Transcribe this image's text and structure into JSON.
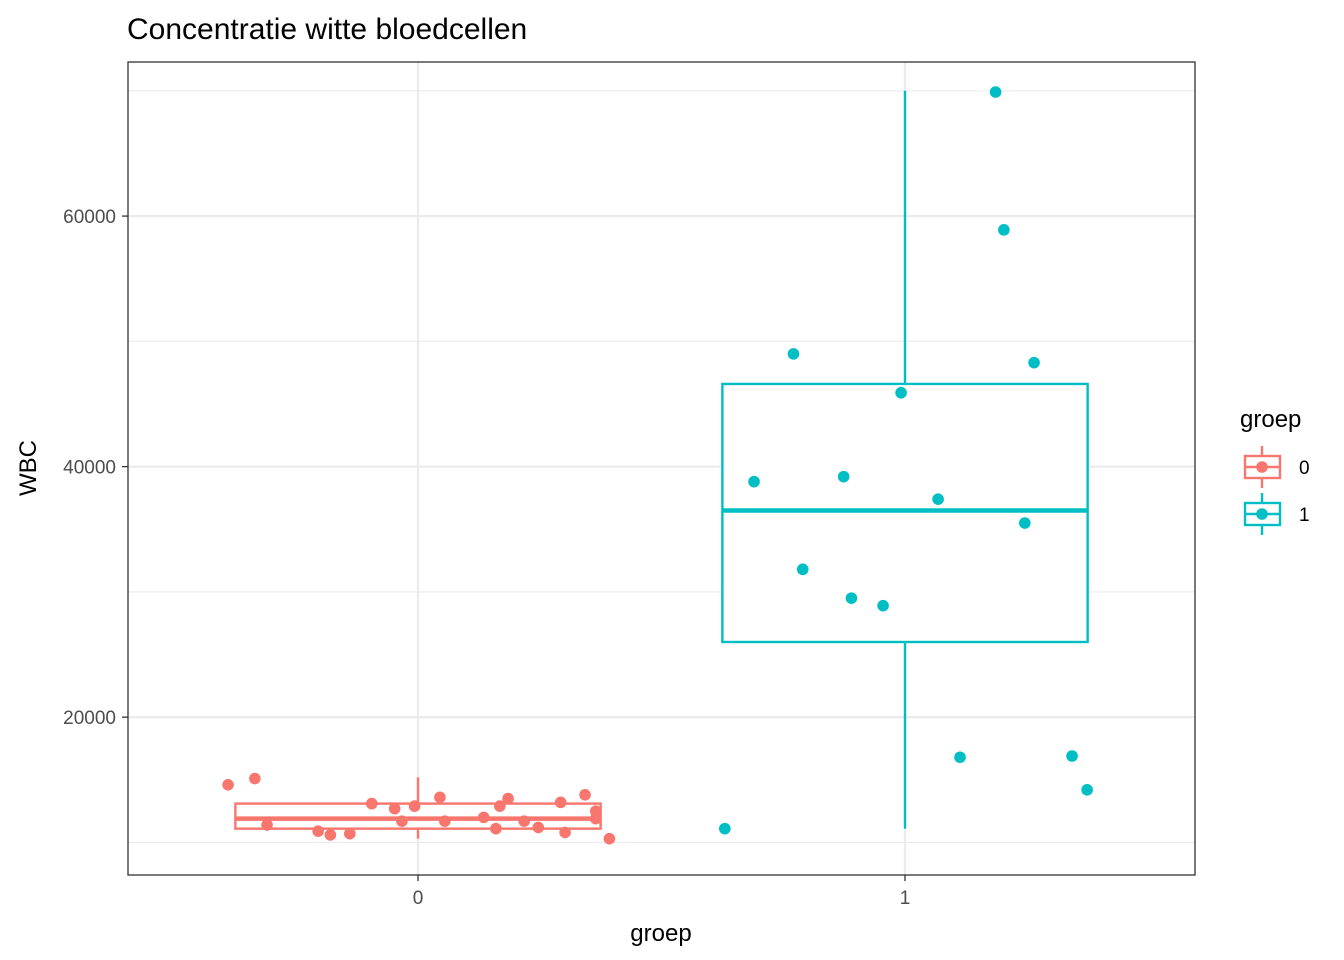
{
  "chart_data": {
    "type": "boxplot",
    "title": "Concentratie witte bloedcellen",
    "xlabel": "groep",
    "ylabel": "WBC",
    "categories": [
      "0",
      "1"
    ],
    "ylim": [
      7400,
      72300
    ],
    "yticks": [
      20000,
      40000,
      60000
    ],
    "ytick_labels": [
      "20000",
      "40000",
      "60000"
    ],
    "grid": true,
    "legend": {
      "title": "groep",
      "position": "right",
      "entries": [
        {
          "label": "0",
          "color": "#F8766D"
        },
        {
          "label": "1",
          "color": "#00BFC4"
        }
      ]
    },
    "boxes": [
      {
        "category": "0",
        "color": "#F8766D",
        "whisker_low": 10300,
        "q1": 11100,
        "median": 11900,
        "q3": 13100,
        "whisker_high": 15200
      },
      {
        "category": "1",
        "color": "#00BFC4",
        "whisker_low": 11100,
        "q1": 26000,
        "median": 36500,
        "q3": 46600,
        "whisker_high": 70000
      }
    ],
    "series": [
      {
        "name": "0",
        "color": "#F8766D",
        "points": [
          {
            "jitter": -0.39,
            "y": 14600
          },
          {
            "jitter": -0.335,
            "y": 15100
          },
          {
            "jitter": -0.31,
            "y": 11400
          },
          {
            "jitter": -0.205,
            "y": 10900
          },
          {
            "jitter": -0.18,
            "y": 10600
          },
          {
            "jitter": -0.14,
            "y": 10700
          },
          {
            "jitter": -0.095,
            "y": 13100
          },
          {
            "jitter": -0.048,
            "y": 12700
          },
          {
            "jitter": -0.033,
            "y": 11700
          },
          {
            "jitter": -0.007,
            "y": 12900
          },
          {
            "jitter": 0.045,
            "y": 13600
          },
          {
            "jitter": 0.055,
            "y": 11700
          },
          {
            "jitter": 0.135,
            "y": 12000
          },
          {
            "jitter": 0.16,
            "y": 11100
          },
          {
            "jitter": 0.168,
            "y": 12900
          },
          {
            "jitter": 0.185,
            "y": 13500
          },
          {
            "jitter": 0.218,
            "y": 11700
          },
          {
            "jitter": 0.247,
            "y": 11200
          },
          {
            "jitter": 0.293,
            "y": 13200
          },
          {
            "jitter": 0.302,
            "y": 10800
          },
          {
            "jitter": 0.343,
            "y": 13800
          },
          {
            "jitter": 0.365,
            "y": 12500
          },
          {
            "jitter": 0.365,
            "y": 11900
          },
          {
            "jitter": 0.393,
            "y": 10300
          }
        ]
      },
      {
        "name": "1",
        "color": "#00BFC4",
        "points": [
          {
            "jitter": -0.37,
            "y": 11100
          },
          {
            "jitter": -0.31,
            "y": 38800
          },
          {
            "jitter": -0.229,
            "y": 49000
          },
          {
            "jitter": -0.21,
            "y": 31800
          },
          {
            "jitter": -0.126,
            "y": 39200
          },
          {
            "jitter": -0.11,
            "y": 29500
          },
          {
            "jitter": -0.045,
            "y": 28900
          },
          {
            "jitter": -0.008,
            "y": 45900
          },
          {
            "jitter": 0.068,
            "y": 37400
          },
          {
            "jitter": 0.113,
            "y": 16800
          },
          {
            "jitter": 0.186,
            "y": 69900
          },
          {
            "jitter": 0.203,
            "y": 58900
          },
          {
            "jitter": 0.246,
            "y": 35500
          },
          {
            "jitter": 0.265,
            "y": 48300
          },
          {
            "jitter": 0.343,
            "y": 16900
          },
          {
            "jitter": 0.374,
            "y": 14200
          }
        ]
      }
    ]
  }
}
